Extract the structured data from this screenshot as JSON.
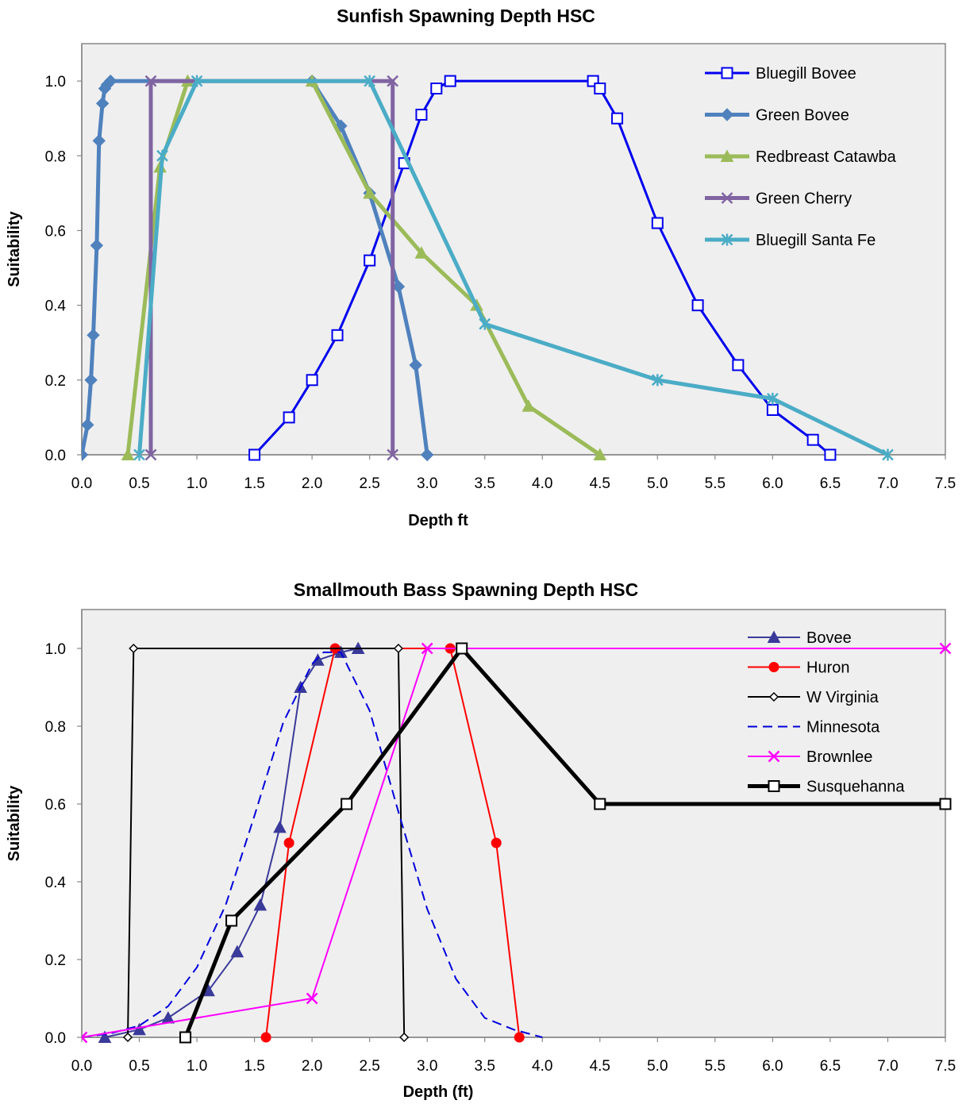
{
  "chart_data": [
    {
      "type": "line",
      "title": "Sunfish Spawning Depth HSC",
      "xlabel": "Depth ft",
      "ylabel": "Suitability",
      "xlim": [
        0,
        7.5
      ],
      "ylim": [
        0,
        1.1
      ],
      "xticks": [
        "0.0",
        "0.5",
        "1.0",
        "1.5",
        "2.0",
        "2.5",
        "3.0",
        "3.5",
        "4.0",
        "4.5",
        "5.0",
        "5.5",
        "6.0",
        "6.5",
        "7.0",
        "7.5"
      ],
      "yticks": [
        "0.0",
        "0.2",
        "0.4",
        "0.6",
        "0.8",
        "1.0"
      ],
      "grid": false,
      "legend_position": "top-right",
      "plot_background": "#efefef",
      "series": [
        {
          "name": "Bluegill Bovee",
          "color": "#0000ee",
          "marker": "square-open",
          "width": 3,
          "x": [
            1.5,
            1.8,
            2.0,
            2.22,
            2.5,
            2.8,
            2.95,
            3.08,
            3.2,
            4.44,
            4.5,
            4.65,
            5.0,
            5.35,
            5.7,
            6.0,
            6.35,
            6.5
          ],
          "y": [
            0.0,
            0.1,
            0.2,
            0.32,
            0.52,
            0.78,
            0.91,
            0.98,
            1.0,
            1.0,
            0.98,
            0.9,
            0.62,
            0.4,
            0.24,
            0.12,
            0.04,
            0.0
          ]
        },
        {
          "name": "Green Bovee",
          "color": "#4f81bd",
          "marker": "diamond",
          "width": 5,
          "x": [
            0.0,
            0.05,
            0.08,
            0.1,
            0.13,
            0.15,
            0.18,
            0.2,
            0.22,
            0.25,
            2.0,
            2.25,
            2.5,
            2.75,
            2.9,
            3.0
          ],
          "y": [
            0.0,
            0.08,
            0.2,
            0.32,
            0.56,
            0.84,
            0.94,
            0.98,
            0.99,
            1.0,
            1.0,
            0.88,
            0.7,
            0.45,
            0.24,
            0.0
          ]
        },
        {
          "name": "Redbreast Catawba",
          "color": "#9bbb59",
          "marker": "triangle",
          "width": 5,
          "x": [
            0.4,
            0.68,
            0.92,
            2.0,
            2.5,
            2.95,
            3.43,
            3.88,
            4.5
          ],
          "y": [
            0.0,
            0.77,
            1.0,
            1.0,
            0.7,
            0.54,
            0.4,
            0.13,
            0.0
          ]
        },
        {
          "name": "Green Cherry",
          "color": "#8064a2",
          "marker": "x",
          "width": 5,
          "x": [
            0.6,
            0.6,
            2.7,
            2.7
          ],
          "y": [
            0.0,
            1.0,
            1.0,
            0.0
          ]
        },
        {
          "name": "Bluegill Santa Fe",
          "color": "#4bacc6",
          "marker": "star",
          "width": 5,
          "x": [
            0.5,
            0.7,
            1.0,
            2.5,
            3.5,
            5.0,
            6.0,
            7.0
          ],
          "y": [
            0.0,
            0.8,
            1.0,
            1.0,
            0.35,
            0.2,
            0.15,
            0.0
          ]
        }
      ]
    },
    {
      "type": "line",
      "title": "Smallmouth Bass Spawning Depth HSC",
      "xlabel": "Depth (ft)",
      "ylabel": "Suitability",
      "xlim": [
        0,
        7.5
      ],
      "ylim": [
        0,
        1.1
      ],
      "xticks": [
        "0.0",
        "0.5",
        "1.0",
        "1.5",
        "2.0",
        "2.5",
        "3.0",
        "3.5",
        "4.0",
        "4.5",
        "5.0",
        "5.5",
        "6.0",
        "6.5",
        "7.0",
        "7.5"
      ],
      "yticks": [
        "0.0",
        "0.2",
        "0.4",
        "0.6",
        "0.8",
        "1.0"
      ],
      "grid": false,
      "legend_position": "top-right",
      "plot_background": "#efefef",
      "series": [
        {
          "name": "Bovee",
          "color": "#3a3a9a",
          "marker": "triangle",
          "width": 2,
          "x": [
            0.2,
            0.5,
            0.75,
            1.1,
            1.35,
            1.55,
            1.72,
            1.9,
            2.05,
            2.25,
            2.4
          ],
          "y": [
            0.0,
            0.02,
            0.05,
            0.12,
            0.22,
            0.34,
            0.54,
            0.9,
            0.97,
            0.99,
            1.0
          ]
        },
        {
          "name": "Huron",
          "color": "#ff0000",
          "marker": "circle",
          "width": 2,
          "x": [
            1.6,
            1.8,
            2.2,
            3.2,
            3.6,
            3.8
          ],
          "y": [
            0.0,
            0.5,
            1.0,
            1.0,
            0.5,
            0.0
          ]
        },
        {
          "name": "W Virginia",
          "color": "#000000",
          "marker": "diamond-open",
          "width": 2,
          "x": [
            0.4,
            0.45,
            2.75,
            2.8
          ],
          "y": [
            0.0,
            1.0,
            1.0,
            0.0
          ]
        },
        {
          "name": "Minnesota",
          "color": "#0000dd",
          "marker": "none",
          "width": 2,
          "dash": true,
          "x": [
            0.0,
            0.25,
            0.5,
            0.75,
            1.0,
            1.25,
            1.5,
            1.75,
            2.0,
            2.1,
            2.25,
            2.5,
            2.75,
            3.0,
            3.25,
            3.5,
            3.75,
            4.0
          ],
          "y": [
            0.0,
            0.01,
            0.03,
            0.08,
            0.18,
            0.34,
            0.57,
            0.81,
            0.96,
            0.99,
            0.99,
            0.84,
            0.58,
            0.33,
            0.15,
            0.05,
            0.02,
            0.0
          ]
        },
        {
          "name": "Brownlee",
          "color": "#ff00ff",
          "marker": "x",
          "width": 2,
          "x": [
            0.0,
            2.0,
            3.0,
            7.5
          ],
          "y": [
            0.0,
            0.1,
            1.0,
            1.0
          ]
        },
        {
          "name": "Susquehanna",
          "color": "#000000",
          "marker": "square-open",
          "width": 5,
          "x": [
            0.9,
            1.3,
            2.3,
            3.3,
            4.5,
            7.5
          ],
          "y": [
            0.0,
            0.3,
            0.6,
            1.0,
            0.6,
            0.6
          ]
        }
      ]
    }
  ]
}
